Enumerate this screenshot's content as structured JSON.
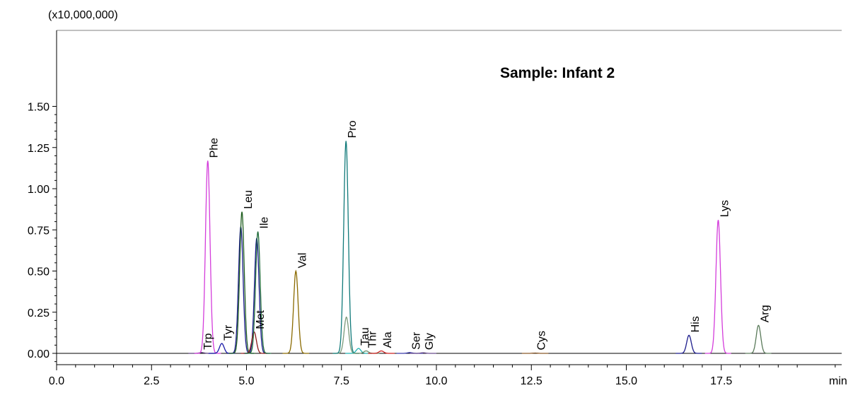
{
  "chart_data": {
    "type": "line",
    "title": "Sample: Infant 2",
    "y_multiplier_label": "(x10,000,000)",
    "x_unit_label": "min",
    "xlim": [
      0.0,
      20.5
    ],
    "ylim": [
      -0.09,
      1.53
    ],
    "x_ticks": [
      {
        "value": 0.0,
        "label": "0.0"
      },
      {
        "value": 2.5,
        "label": "2.5"
      },
      {
        "value": 5.0,
        "label": "5.0"
      },
      {
        "value": 7.5,
        "label": "7.5"
      },
      {
        "value": 10.0,
        "label": "10.0"
      },
      {
        "value": 12.5,
        "label": "12.5"
      },
      {
        "value": 15.0,
        "label": "15.0"
      },
      {
        "value": 17.5,
        "label": "17.5"
      }
    ],
    "y_ticks": [
      {
        "value": 0.0,
        "label": "0.00"
      },
      {
        "value": 0.25,
        "label": "0.25"
      },
      {
        "value": 0.5,
        "label": "0.50"
      },
      {
        "value": 0.75,
        "label": "0.75"
      },
      {
        "value": 1.0,
        "label": "1.00"
      },
      {
        "value": 1.25,
        "label": "1.25"
      },
      {
        "value": 1.5,
        "label": "1.50"
      }
    ],
    "peaks": [
      {
        "name": "Trp",
        "rt": 3.82,
        "height": 0.005,
        "color": "#5a3e7a"
      },
      {
        "name": "Phe",
        "rt": 3.98,
        "height": 1.17,
        "color": "#d43ddb"
      },
      {
        "name": "Tyr",
        "rt": 4.35,
        "height": 0.06,
        "color": "#1a1aa8"
      },
      {
        "name": "Leu",
        "rt": 4.88,
        "height": 0.86,
        "color": "#1f5e1f"
      },
      {
        "name": "Met",
        "rt": 5.2,
        "height": 0.13,
        "color": "#8b1a1a"
      },
      {
        "name": "Ile",
        "rt": 5.3,
        "height": 0.74,
        "color": "#1f6b3a"
      },
      {
        "name": "Val",
        "rt": 6.3,
        "height": 0.5,
        "color": "#8a6a00"
      },
      {
        "name": "Pro",
        "rt": 7.62,
        "height": 1.29,
        "color": "#117a7a"
      },
      {
        "name": "Tau",
        "rt": 7.95,
        "height": 0.03,
        "color": "#20b0b0"
      },
      {
        "name": "Thr",
        "rt": 8.15,
        "height": 0.015,
        "color": "#6b8e6b"
      },
      {
        "name": "Ala",
        "rt": 8.55,
        "height": 0.015,
        "color": "#cc2222"
      },
      {
        "name": "Ser",
        "rt": 9.3,
        "height": 0.005,
        "color": "#3a3aaa"
      },
      {
        "name": "Gly",
        "rt": 9.65,
        "height": 0.004,
        "color": "#6b4e8e"
      },
      {
        "name": "Cys",
        "rt": 12.6,
        "height": 0.002,
        "color": "#8b5a2b"
      },
      {
        "name": "His",
        "rt": 16.65,
        "height": 0.11,
        "color": "#1a1a8b"
      },
      {
        "name": "Lys",
        "rt": 17.42,
        "height": 0.81,
        "color": "#d43ddb"
      },
      {
        "name": "Arg",
        "rt": 18.48,
        "height": 0.17,
        "color": "#5a7a5a"
      }
    ],
    "extra_traces": [
      {
        "rt": 4.85,
        "height": 0.77,
        "color": "#1a1a8b"
      },
      {
        "rt": 5.27,
        "height": 0.7,
        "color": "#1a1a8b"
      },
      {
        "rt": 7.63,
        "height": 0.22,
        "color": "#7a9a7a"
      }
    ]
  }
}
